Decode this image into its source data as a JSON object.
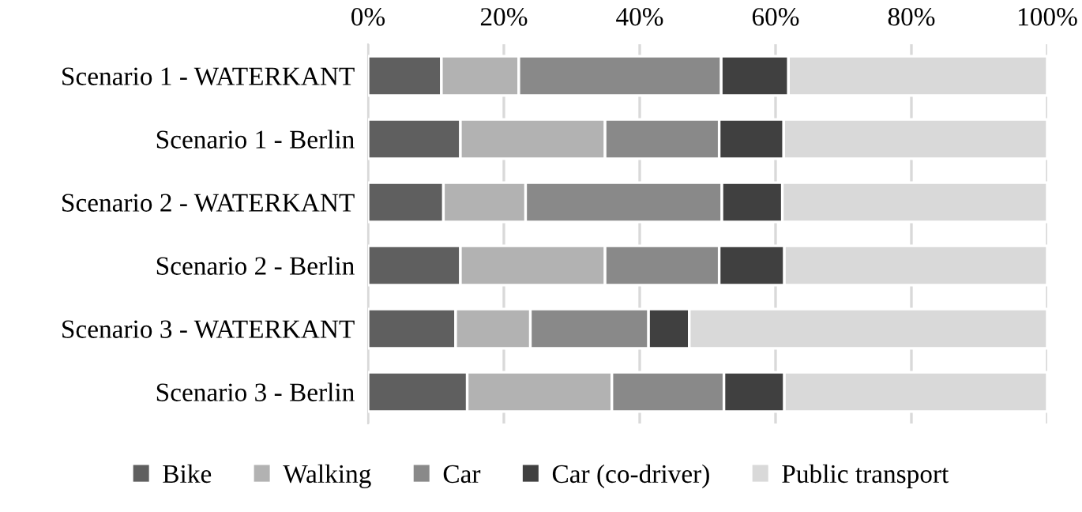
{
  "chart_data": {
    "type": "bar",
    "orientation": "horizontal",
    "stacked": true,
    "categories": [
      "Scenario 1 - WATERKANT",
      "Scenario 1 - Berlin",
      "Scenario 2 - WATERKANT",
      "Scenario 2 - Berlin",
      "Scenario 3 - WATERKANT",
      "Scenario 3 - Berlin"
    ],
    "series": [
      {
        "name": "Bike",
        "color": "#5f5f5f",
        "values": [
          10.8,
          13.6,
          11.1,
          13.6,
          12.9,
          14.6
        ]
      },
      {
        "name": "Walking",
        "color": "#b2b2b2",
        "values": [
          11.4,
          21.3,
          12.1,
          21.3,
          11.0,
          21.3
        ]
      },
      {
        "name": "Car",
        "color": "#898989",
        "values": [
          29.8,
          16.8,
          28.9,
          16.8,
          17.4,
          16.5
        ]
      },
      {
        "name": "Car (co-driver)",
        "color": "#404040",
        "values": [
          9.9,
          9.5,
          8.9,
          9.6,
          6.0,
          8.9
        ]
      },
      {
        "name": "Public transport",
        "color": "#d9d9d9",
        "values": [
          38.1,
          38.8,
          39.0,
          38.7,
          52.7,
          38.7
        ]
      }
    ],
    "xlim": [
      0,
      100
    ],
    "xticks": [
      {
        "value": 0,
        "label": "0%"
      },
      {
        "value": 20,
        "label": "20%"
      },
      {
        "value": 40,
        "label": "40%"
      },
      {
        "value": 60,
        "label": "60%"
      },
      {
        "value": 80,
        "label": "80%"
      },
      {
        "value": 100,
        "label": "100%"
      }
    ],
    "grid": "x",
    "legend": "bottom"
  }
}
